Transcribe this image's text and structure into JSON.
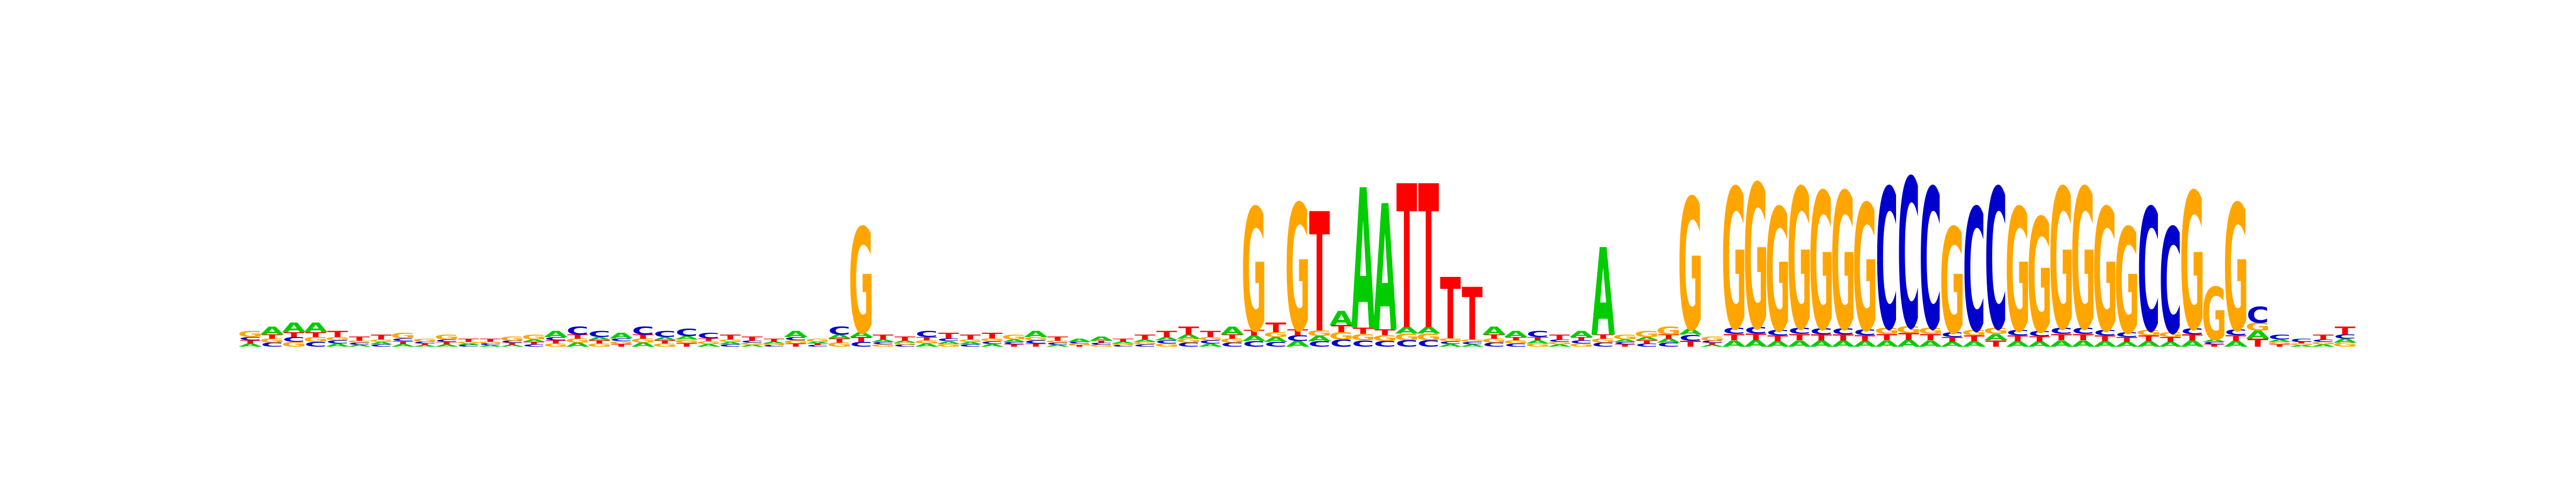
{
  "colors": {
    "A": "#00cc00",
    "C": "#0000cc",
    "G": "#ffa500",
    "T": "#ff0000"
  },
  "columns": [
    {
      "height": 0.08,
      "stack": [
        "A",
        "T",
        "C",
        "G"
      ]
    },
    {
      "height": 0.1,
      "stack": [
        "C",
        "G",
        "T",
        "A"
      ]
    },
    {
      "height": 0.12,
      "stack": [
        "G",
        "C",
        "T",
        "A"
      ]
    },
    {
      "height": 0.12,
      "stack": [
        "C",
        "G",
        "T",
        "A"
      ]
    },
    {
      "height": 0.08,
      "stack": [
        "A",
        "C",
        "G",
        "T"
      ]
    },
    {
      "height": 0.05,
      "stack": [
        "A",
        "C",
        "G",
        "T"
      ]
    },
    {
      "height": 0.06,
      "stack": [
        "C",
        "A",
        "G",
        "T"
      ]
    },
    {
      "height": 0.07,
      "stack": [
        "A",
        "T",
        "C",
        "G"
      ]
    },
    {
      "height": 0.04,
      "stack": [
        "A",
        "T",
        "C",
        "G"
      ]
    },
    {
      "height": 0.06,
      "stack": [
        "A",
        "T",
        "C",
        "G"
      ]
    },
    {
      "height": 0.04,
      "stack": [
        "C",
        "A",
        "G",
        "T"
      ]
    },
    {
      "height": 0.04,
      "stack": [
        "A",
        "C",
        "G",
        "T"
      ]
    },
    {
      "height": 0.05,
      "stack": [
        "A",
        "T",
        "C",
        "G"
      ]
    },
    {
      "height": 0.06,
      "stack": [
        "C",
        "T",
        "A",
        "G"
      ]
    },
    {
      "height": 0.08,
      "stack": [
        "G",
        "T",
        "C",
        "A"
      ]
    },
    {
      "height": 0.1,
      "stack": [
        "A",
        "G",
        "T",
        "C"
      ]
    },
    {
      "height": 0.08,
      "stack": [
        "G",
        "T",
        "A",
        "C"
      ]
    },
    {
      "height": 0.07,
      "stack": [
        "T",
        "G",
        "C",
        "A"
      ]
    },
    {
      "height": 0.1,
      "stack": [
        "A",
        "G",
        "T",
        "C"
      ]
    },
    {
      "height": 0.08,
      "stack": [
        "G",
        "T",
        "A",
        "C"
      ]
    },
    {
      "height": 0.09,
      "stack": [
        "T",
        "G",
        "A",
        "C"
      ]
    },
    {
      "height": 0.07,
      "stack": [
        "A",
        "G",
        "T",
        "C"
      ]
    },
    {
      "height": 0.06,
      "stack": [
        "C",
        "A",
        "G",
        "T"
      ]
    },
    {
      "height": 0.05,
      "stack": [
        "A",
        "G",
        "C",
        "T"
      ]
    },
    {
      "height": 0.04,
      "stack": [
        "C",
        "G",
        "A",
        "T"
      ]
    },
    {
      "height": 0.08,
      "stack": [
        "T",
        "G",
        "C",
        "A"
      ]
    },
    {
      "height": 0.04,
      "stack": [
        "C",
        "T",
        "A",
        "G"
      ]
    },
    {
      "height": 0.1,
      "stack": [
        "G",
        "T",
        "A",
        "C"
      ]
    },
    {
      "height": 0.6,
      "stack": [
        "C",
        "T",
        "A",
        "G"
      ]
    },
    {
      "height": 0.06,
      "stack": [
        "G",
        "C",
        "A",
        "T"
      ]
    },
    {
      "height": 0.05,
      "stack": [
        "C",
        "G",
        "A",
        "T"
      ]
    },
    {
      "height": 0.08,
      "stack": [
        "A",
        "G",
        "T",
        "C"
      ]
    },
    {
      "height": 0.07,
      "stack": [
        "G",
        "A",
        "C",
        "T"
      ]
    },
    {
      "height": 0.06,
      "stack": [
        "C",
        "A",
        "G",
        "T"
      ]
    },
    {
      "height": 0.07,
      "stack": [
        "A",
        "C",
        "G",
        "T"
      ]
    },
    {
      "height": 0.06,
      "stack": [
        "T",
        "C",
        "A",
        "G"
      ]
    },
    {
      "height": 0.08,
      "stack": [
        "T",
        "C",
        "G",
        "A"
      ]
    },
    {
      "height": 0.05,
      "stack": [
        "A",
        "C",
        "G",
        "T"
      ]
    },
    {
      "height": 0.04,
      "stack": [
        "T",
        "G",
        "C",
        "A"
      ]
    },
    {
      "height": 0.05,
      "stack": [
        "G",
        "C",
        "T",
        "A"
      ]
    },
    {
      "height": 0.04,
      "stack": [
        "C",
        "G",
        "A",
        "T"
      ]
    },
    {
      "height": 0.06,
      "stack": [
        "C",
        "G",
        "A",
        "T"
      ]
    },
    {
      "height": 0.08,
      "stack": [
        "G",
        "C",
        "A",
        "T"
      ]
    },
    {
      "height": 0.1,
      "stack": [
        "C",
        "G",
        "A",
        "T"
      ]
    },
    {
      "height": 0.08,
      "stack": [
        "A",
        "C",
        "G",
        "T"
      ]
    },
    {
      "height": 0.1,
      "stack": [
        "C",
        "G",
        "T",
        "A"
      ]
    },
    {
      "height": 0.7,
      "stack": [
        "C",
        "A",
        "T",
        "G"
      ]
    },
    {
      "height": 0.12,
      "stack": [
        "C",
        "A",
        "G",
        "T"
      ]
    },
    {
      "height": 0.72,
      "stack": [
        "A",
        "C",
        "T",
        "G"
      ]
    },
    {
      "height": 0.68,
      "stack": [
        "C",
        "A",
        "G",
        "T"
      ]
    },
    {
      "height": 0.18,
      "stack": [
        "C",
        "G",
        "T",
        "A"
      ]
    },
    {
      "height": 0.8,
      "stack": [
        "C",
        "G",
        "T",
        "A"
      ]
    },
    {
      "height": 0.72,
      "stack": [
        "C",
        "G",
        "T",
        "A"
      ]
    },
    {
      "height": 0.82,
      "stack": [
        "C",
        "G",
        "A",
        "T"
      ]
    },
    {
      "height": 0.82,
      "stack": [
        "C",
        "G",
        "A",
        "T"
      ]
    },
    {
      "height": 0.35,
      "stack": [
        "A",
        "C",
        "G",
        "T"
      ]
    },
    {
      "height": 0.3,
      "stack": [
        "A",
        "C",
        "G",
        "T"
      ]
    },
    {
      "height": 0.1,
      "stack": [
        "C",
        "G",
        "T",
        "A"
      ]
    },
    {
      "height": 0.08,
      "stack": [
        "C",
        "G",
        "T",
        "A"
      ]
    },
    {
      "height": 0.08,
      "stack": [
        "G",
        "A",
        "T",
        "C"
      ]
    },
    {
      "height": 0.06,
      "stack": [
        "A",
        "G",
        "C",
        "T"
      ]
    },
    {
      "height": 0.08,
      "stack": [
        "G",
        "C",
        "T",
        "A"
      ]
    },
    {
      "height": 0.5,
      "stack": [
        "C",
        "G",
        "T",
        "A"
      ]
    },
    {
      "height": 0.06,
      "stack": [
        "T",
        "C",
        "A",
        "G"
      ]
    },
    {
      "height": 0.08,
      "stack": [
        "C",
        "T",
        "A",
        "G"
      ]
    },
    {
      "height": 0.1,
      "stack": [
        "C",
        "A",
        "T",
        "G"
      ]
    },
    {
      "height": 0.75,
      "stack": [
        "T",
        "C",
        "A",
        "G"
      ]
    },
    {
      "height": 0.05,
      "stack": [
        "A",
        "T",
        "C",
        "G"
      ]
    },
    {
      "height": 0.8,
      "stack": [
        "A",
        "T",
        "C",
        "G"
      ]
    },
    {
      "height": 0.82,
      "stack": [
        "A",
        "T",
        "C",
        "G"
      ]
    },
    {
      "height": 0.7,
      "stack": [
        "A",
        "T",
        "C",
        "G"
      ]
    },
    {
      "height": 0.8,
      "stack": [
        "A",
        "T",
        "C",
        "G"
      ]
    },
    {
      "height": 0.78,
      "stack": [
        "A",
        "T",
        "C",
        "G"
      ]
    },
    {
      "height": 0.78,
      "stack": [
        "A",
        "T",
        "C",
        "G"
      ]
    },
    {
      "height": 0.72,
      "stack": [
        "A",
        "T",
        "C",
        "G"
      ]
    },
    {
      "height": 0.8,
      "stack": [
        "A",
        "T",
        "G",
        "C"
      ]
    },
    {
      "height": 0.85,
      "stack": [
        "A",
        "T",
        "G",
        "C"
      ]
    },
    {
      "height": 0.8,
      "stack": [
        "A",
        "T",
        "G",
        "C"
      ]
    },
    {
      "height": 0.6,
      "stack": [
        "A",
        "T",
        "C",
        "G"
      ]
    },
    {
      "height": 0.7,
      "stack": [
        "A",
        "T",
        "G",
        "C"
      ]
    },
    {
      "height": 0.8,
      "stack": [
        "T",
        "A",
        "G",
        "C"
      ]
    },
    {
      "height": 0.7,
      "stack": [
        "A",
        "T",
        "C",
        "G"
      ]
    },
    {
      "height": 0.65,
      "stack": [
        "A",
        "T",
        "C",
        "G"
      ]
    },
    {
      "height": 0.8,
      "stack": [
        "A",
        "T",
        "C",
        "G"
      ]
    },
    {
      "height": 0.8,
      "stack": [
        "A",
        "T",
        "C",
        "G"
      ]
    },
    {
      "height": 0.7,
      "stack": [
        "A",
        "T",
        "C",
        "G"
      ]
    },
    {
      "height": 0.6,
      "stack": [
        "A",
        "T",
        "C",
        "G"
      ]
    },
    {
      "height": 0.7,
      "stack": [
        "A",
        "T",
        "G",
        "C"
      ]
    },
    {
      "height": 0.6,
      "stack": [
        "A",
        "T",
        "G",
        "C"
      ]
    },
    {
      "height": 0.78,
      "stack": [
        "A",
        "T",
        "C",
        "G"
      ]
    },
    {
      "height": 0.3,
      "stack": [
        "T",
        "C",
        "A",
        "G"
      ]
    },
    {
      "height": 0.72,
      "stack": [
        "A",
        "T",
        "C",
        "G"
      ]
    },
    {
      "height": 0.2,
      "stack": [
        "T",
        "A",
        "G",
        "C"
      ]
    },
    {
      "height": 0.06,
      "stack": [
        "T",
        "G",
        "A",
        "C"
      ]
    },
    {
      "height": 0.04,
      "stack": [
        "A",
        "G",
        "T",
        "C"
      ]
    },
    {
      "height": 0.06,
      "stack": [
        "A",
        "G",
        "C",
        "T"
      ]
    },
    {
      "height": 0.1,
      "stack": [
        "G",
        "A",
        "C",
        "T"
      ]
    }
  ]
}
